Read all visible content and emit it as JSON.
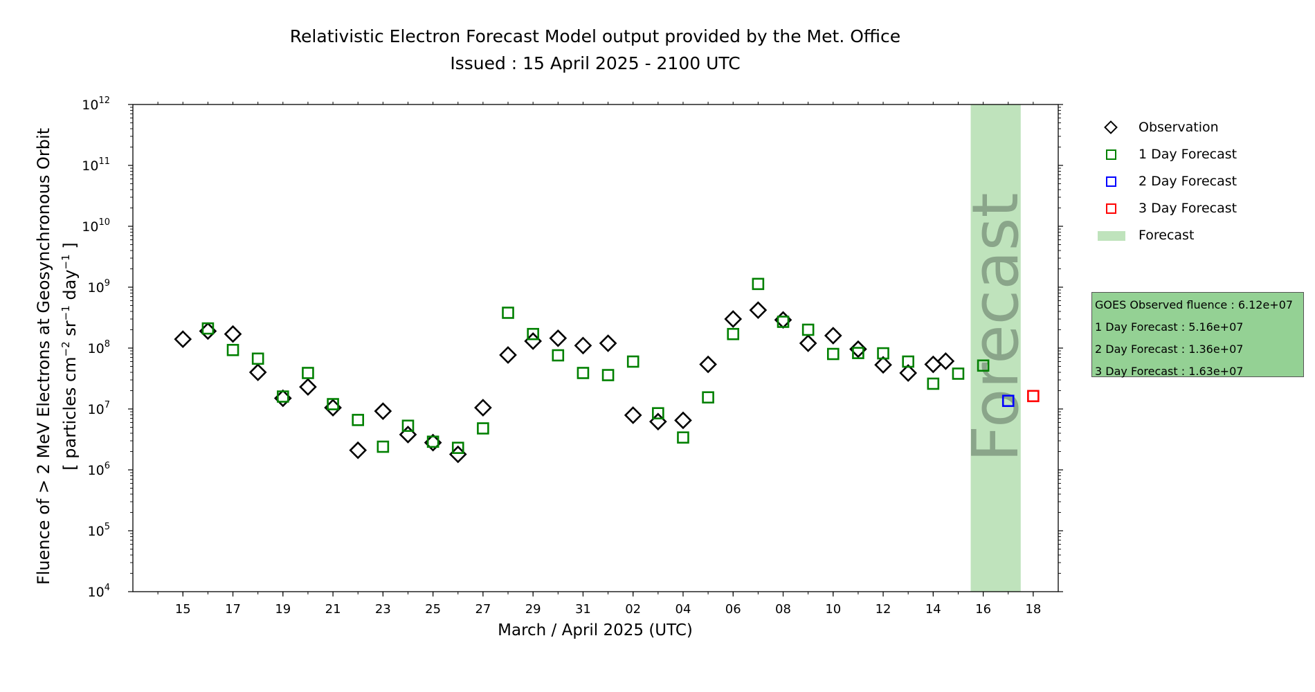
{
  "title_line1": "Relativistic Electron Forecast Model output provided by the Met. Office",
  "title_line2": "Issued : 15 April 2025 - 2100 UTC",
  "legend": {
    "observation": "Observation",
    "day1": "1 Day Forecast",
    "day2": "2 Day Forecast",
    "day3": "3 Day Forecast",
    "forecast": "Forecast"
  },
  "infobox": {
    "line1": "GOES Observed fluence : 6.12e+07",
    "line2": "1 Day Forecast : 5.16e+07",
    "line3": "2 Day Forecast : 1.36e+07",
    "line4": "3 Day Forecast : 1.63e+07"
  },
  "colors": {
    "observation": "#000000",
    "day1": "#008000",
    "day2": "#0000ff",
    "day3": "#ff0000",
    "forecast_band": "#bfe3bc",
    "forecast_text": "#8aa58a",
    "infobox": "#94d194"
  },
  "chart_data": {
    "type": "scatter",
    "title": "Relativistic Electron Forecast Model output provided by the Met. Office",
    "subtitle": "Issued : 15 April 2025 - 2100 UTC",
    "xlabel": "March / April 2025 (UTC)",
    "ylabel": "Fluence of > 2 MeV Electrons at Geosynchronous Orbit [ particles cm−2 sr−1 day−1 ]",
    "ylabel_line1": "Fluence of > 2 MeV Electrons at Geosynchronous Orbit",
    "ylabel_line2": {
      "open": "[ particles cm",
      "exp_cm": "−2",
      "sr": " sr",
      "exp_sr": "−1",
      "day": " day",
      "exp_day": "−1",
      "close": " ]"
    },
    "y_scale": "log",
    "ylim": [
      "1e4",
      "1e12"
    ],
    "xlim": [
      "2025-03-13",
      "2025-04-19"
    ],
    "y_ticks": [
      {
        "base": "10",
        "exp": "4"
      },
      {
        "base": "10",
        "exp": "5"
      },
      {
        "base": "10",
        "exp": "6"
      },
      {
        "base": "10",
        "exp": "7"
      },
      {
        "base": "10",
        "exp": "8"
      },
      {
        "base": "10",
        "exp": "9"
      },
      {
        "base": "10",
        "exp": "10"
      },
      {
        "base": "10",
        "exp": "11"
      },
      {
        "base": "10",
        "exp": "12"
      }
    ],
    "x_ticks": [
      {
        "date": "2025-03-15",
        "label": "15"
      },
      {
        "date": "2025-03-17",
        "label": "17"
      },
      {
        "date": "2025-03-19",
        "label": "19"
      },
      {
        "date": "2025-03-21",
        "label": "21"
      },
      {
        "date": "2025-03-23",
        "label": "23"
      },
      {
        "date": "2025-03-25",
        "label": "25"
      },
      {
        "date": "2025-03-27",
        "label": "27"
      },
      {
        "date": "2025-03-29",
        "label": "29"
      },
      {
        "date": "2025-03-31",
        "label": "31"
      },
      {
        "date": "2025-04-02",
        "label": "02"
      },
      {
        "date": "2025-04-04",
        "label": "04"
      },
      {
        "date": "2025-04-06",
        "label": "06"
      },
      {
        "date": "2025-04-08",
        "label": "08"
      },
      {
        "date": "2025-04-10",
        "label": "10"
      },
      {
        "date": "2025-04-12",
        "label": "12"
      },
      {
        "date": "2025-04-14",
        "label": "14"
      },
      {
        "date": "2025-04-16",
        "label": "16"
      },
      {
        "date": "2025-04-18",
        "label": "18"
      }
    ],
    "forecast_band": {
      "start": "2025-04-16",
      "end": "2025-04-18",
      "label": "Forecast"
    },
    "legend_position": "upper-right, outside plot",
    "grid": false,
    "series": [
      {
        "name": "Observation",
        "marker": "diamond",
        "color": "#000000",
        "points": [
          [
            "2025-03-15",
            140000000.0
          ],
          [
            "2025-03-16",
            190000000.0
          ],
          [
            "2025-03-17",
            170000000.0
          ],
          [
            "2025-03-18",
            40000000.0
          ],
          [
            "2025-03-19",
            15000000.0
          ],
          [
            "2025-03-20",
            23000000.0
          ],
          [
            "2025-03-21",
            10500000.0
          ],
          [
            "2025-03-22",
            2100000.0
          ],
          [
            "2025-03-23",
            9200000.0
          ],
          [
            "2025-03-24",
            3800000.0
          ],
          [
            "2025-03-25",
            2800000.0
          ],
          [
            "2025-03-26",
            1800000.0
          ],
          [
            "2025-03-27",
            10500000.0
          ],
          [
            "2025-03-28",
            77000000.0
          ],
          [
            "2025-03-29",
            130000000.0
          ],
          [
            "2025-03-30",
            145000000.0
          ],
          [
            "2025-03-31",
            110000000.0
          ],
          [
            "2025-04-01",
            120000000.0
          ],
          [
            "2025-04-02",
            7900000.0
          ],
          [
            "2025-04-03",
            6200000.0
          ],
          [
            "2025-04-04",
            6500000.0
          ],
          [
            "2025-04-05",
            54000000.0
          ],
          [
            "2025-04-06",
            300000000.0
          ],
          [
            "2025-04-07",
            420000000.0
          ],
          [
            "2025-04-08",
            290000000.0
          ],
          [
            "2025-04-09",
            120000000.0
          ],
          [
            "2025-04-10",
            160000000.0
          ],
          [
            "2025-04-11",
            96000000.0
          ],
          [
            "2025-04-12",
            53000000.0
          ],
          [
            "2025-04-13",
            39000000.0
          ],
          [
            "2025-04-14",
            54000000.0
          ],
          [
            "2025-04-14T12:00",
            61000000.0
          ]
        ]
      },
      {
        "name": "1 Day Forecast",
        "marker": "square",
        "color": "#008000",
        "points": [
          [
            "2025-03-16",
            210000000.0
          ],
          [
            "2025-03-17",
            93000000.0
          ],
          [
            "2025-03-18",
            67000000.0
          ],
          [
            "2025-03-19",
            16000000.0
          ],
          [
            "2025-03-20",
            39000000.0
          ],
          [
            "2025-03-21",
            12000000.0
          ],
          [
            "2025-03-22",
            6600000.0
          ],
          [
            "2025-03-23",
            2400000.0
          ],
          [
            "2025-03-24",
            5300000.0
          ],
          [
            "2025-03-25",
            2900000.0
          ],
          [
            "2025-03-26",
            2300000.0
          ],
          [
            "2025-03-27",
            4800000.0
          ],
          [
            "2025-03-28",
            380000000.0
          ],
          [
            "2025-03-29",
            170000000.0
          ],
          [
            "2025-03-30",
            76000000.0
          ],
          [
            "2025-03-31",
            39000000.0
          ],
          [
            "2025-04-01",
            36000000.0
          ],
          [
            "2025-04-02",
            60000000.0
          ],
          [
            "2025-04-03",
            8500000.0
          ],
          [
            "2025-04-04",
            3400000.0
          ],
          [
            "2025-04-05",
            15500000.0
          ],
          [
            "2025-04-06",
            170000000.0
          ],
          [
            "2025-04-07",
            1130000000.0
          ],
          [
            "2025-04-08",
            270000000.0
          ],
          [
            "2025-04-09",
            200000000.0
          ],
          [
            "2025-04-10",
            80000000.0
          ],
          [
            "2025-04-11",
            83000000.0
          ],
          [
            "2025-04-12",
            82000000.0
          ],
          [
            "2025-04-13",
            60000000.0
          ],
          [
            "2025-04-14",
            26000000.0
          ],
          [
            "2025-04-15",
            38000000.0
          ],
          [
            "2025-04-16",
            51600000.0
          ]
        ]
      },
      {
        "name": "2 Day Forecast",
        "marker": "square",
        "color": "#0000ff",
        "points": [
          [
            "2025-04-17",
            13600000.0
          ]
        ]
      },
      {
        "name": "3 Day Forecast",
        "marker": "square",
        "color": "#ff0000",
        "points": [
          [
            "2025-04-18",
            16300000.0
          ]
        ]
      }
    ]
  }
}
